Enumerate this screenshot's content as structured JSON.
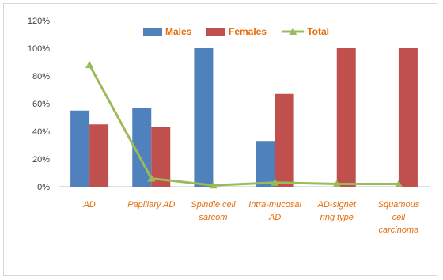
{
  "chart_data": {
    "type": "bar",
    "categories": [
      [
        "AD"
      ],
      [
        "Papillary AD"
      ],
      [
        "Spindle cell",
        "sarcom"
      ],
      [
        "Intra-mucosal",
        "AD"
      ],
      [
        "AD-signet",
        "ring type"
      ],
      [
        "Squamous",
        "cell",
        "carcinoma"
      ]
    ],
    "series": [
      {
        "name": "Males",
        "kind": "bar",
        "color": "#4F81BD",
        "values": [
          55,
          57,
          100,
          33,
          0,
          0
        ]
      },
      {
        "name": "Females",
        "kind": "bar",
        "color": "#C0504D",
        "values": [
          45,
          43,
          0,
          67,
          100,
          100
        ]
      },
      {
        "name": "Total",
        "kind": "line",
        "color": "#9BBB59",
        "values": [
          88,
          6,
          1,
          3,
          2,
          2
        ]
      }
    ],
    "yticks": [
      "0%",
      "20%",
      "40%",
      "60%",
      "80%",
      "100%",
      "120%"
    ],
    "ylim": [
      0,
      120
    ],
    "legend_position": "top",
    "grid": false
  }
}
